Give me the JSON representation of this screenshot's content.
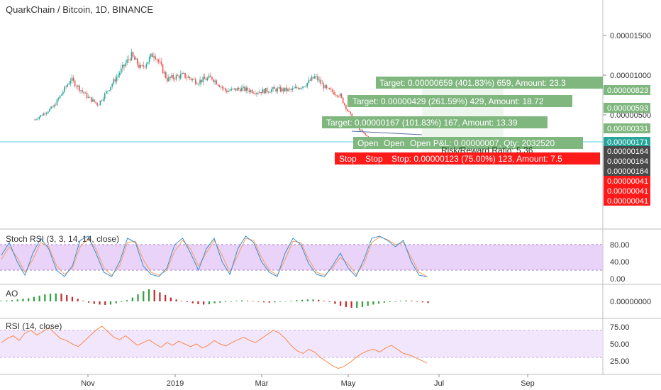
{
  "colors": {
    "up": "#26a69a",
    "down": "#ef5350",
    "target_box": "#7fb77e",
    "stop_box": "#ff1a1a",
    "stoch_k": "#3a8fd6",
    "stoch_d": "#f5a05a",
    "rsi_line": "#f5894a",
    "band": "#e3c8f6",
    "price_line": "#26c6da"
  },
  "header": {
    "symbol": "QuarkChain / Bitcoin, 1D, BINANCE"
  },
  "chart_data": [
    {
      "type": "candlestick",
      "pane": "price",
      "title": "QuarkChain / Bitcoin, 1D, BINANCE",
      "y_ticks": [
        "0.00001500",
        "0.00001000",
        "0.00000500"
      ],
      "ylim": [
        5e-07,
        1.82e-05
      ],
      "x_ticks": [
        "Nov",
        "2019",
        "Mar",
        "May",
        "Jul",
        "Sep"
      ],
      "price_path": [
        [
          "2018-09-25",
          4.4e-06
        ],
        [
          "2018-10-08",
          6e-06
        ],
        [
          "2018-10-20",
          9.5e-06
        ],
        [
          "2018-11-01",
          7.2e-06
        ],
        [
          "2018-11-08",
          6.3e-06
        ],
        [
          "2018-11-20",
          9.5e-06
        ],
        [
          "2018-12-01",
          1.25e-05
        ],
        [
          "2018-12-08",
          1.08e-05
        ],
        [
          "2018-12-17",
          1.28e-05
        ],
        [
          "2018-12-26",
          9.5e-06
        ],
        [
          "2019-01-06",
          1e-05
        ],
        [
          "2019-01-16",
          9.2e-06
        ],
        [
          "2019-01-26",
          9.7e-06
        ],
        [
          "2019-02-05",
          8e-06
        ],
        [
          "2019-02-15",
          8.3e-06
        ],
        [
          "2019-02-27",
          7.9e-06
        ],
        [
          "2019-03-10",
          8.2e-06
        ],
        [
          "2019-03-22",
          8.1e-06
        ],
        [
          "2019-04-01",
          8.8e-06
        ],
        [
          "2019-04-08",
          9.8e-06
        ],
        [
          "2019-04-16",
          8.2e-06
        ],
        [
          "2019-04-25",
          7.5e-06
        ],
        [
          "2019-05-01",
          5.4e-06
        ],
        [
          "2019-05-08",
          3.3e-06
        ],
        [
          "2019-05-15",
          2.1e-06
        ],
        [
          "2019-05-25",
          2.2e-06
        ],
        [
          "2019-06-03",
          1.8e-06
        ],
        [
          "2019-06-10",
          1.7e-06
        ]
      ],
      "price_tags": [
        {
          "label": "0.00000823",
          "value": 8.23e-06,
          "color": "#7fb77e"
        },
        {
          "label": "0.00000593",
          "value": 5.93e-06,
          "color": "#7fb77e"
        },
        {
          "label": "0.00000331",
          "value": 3.31e-06,
          "color": "#7fb77e"
        },
        {
          "label": "0.00000171",
          "value": 1.71e-06,
          "color": "#26a69a"
        },
        {
          "label": "0.00000164",
          "value": 1.64e-06,
          "color": "#4a4a4a"
        },
        {
          "label": "0.00000164",
          "value": 1.64e-06,
          "color": "#4a4a4a"
        },
        {
          "label": "0.00000164",
          "value": 1.64e-06,
          "color": "#4a4a4a"
        },
        {
          "label": "0.00000041",
          "value": 4.1e-07,
          "color": "#ff1a1a"
        },
        {
          "label": "0.00000041",
          "value": 4.1e-07,
          "color": "#ff1a1a"
        },
        {
          "label": "0.00000041",
          "value": 4.1e-07,
          "color": "#ff1a1a"
        }
      ],
      "annotations": {
        "target_1": "Target: 0.00000659 (401.83%) 659, Amount: 23.3",
        "target_2": "Target: 0.00000429 (261.59%) 429, Amount: 18.72",
        "target_3": "Target: 0.00000167 (101.83%) 167, Amount: 13.39",
        "open_1": "Open",
        "open_2": "Open",
        "open_3": "Open P&L: 0.00000007, Qty: 2032520",
        "risk_reward": "Risk/Reward Ratio: 5.36",
        "stop_1": "Stop",
        "stop_2": "Stop",
        "stop_3": "Stop: 0.00000123 (75.00%) 123, Amount: 7.5"
      }
    },
    {
      "type": "line",
      "pane": "stoch_rsi",
      "title": "Stoch RSI (3, 3, 14, 14, close)",
      "y_ticks": [
        "80.00",
        "40.00",
        "0.00"
      ],
      "ylim": [
        -5,
        100
      ],
      "band": [
        20,
        80
      ],
      "series": [
        {
          "values": [
            55,
            85,
            40,
            8,
            60,
            95,
            70,
            20,
            5,
            30,
            90,
            100,
            60,
            15,
            5,
            40,
            95,
            85,
            30,
            10,
            5,
            25,
            80,
            95,
            60,
            20,
            70,
            95,
            40,
            10,
            70,
            100,
            85,
            40,
            15,
            5,
            60,
            95,
            80,
            35,
            10,
            5,
            30,
            60,
            25,
            5,
            45,
            95,
            100,
            90,
            75,
            90,
            40,
            8,
            5
          ]
        },
        {
          "values": [
            45,
            75,
            50,
            15,
            45,
            85,
            75,
            30,
            10,
            25,
            75,
            95,
            70,
            25,
            8,
            30,
            85,
            88,
            45,
            15,
            8,
            20,
            65,
            90,
            70,
            30,
            60,
            90,
            55,
            15,
            55,
            95,
            90,
            50,
            20,
            8,
            45,
            88,
            85,
            45,
            15,
            8,
            25,
            50,
            35,
            10,
            35,
            85,
            98,
            92,
            80,
            85,
            50,
            15,
            5
          ]
        }
      ]
    },
    {
      "type": "histogram",
      "pane": "ao",
      "title": "AO",
      "y_ticks": [
        "0.00000000"
      ],
      "values": [
        0.1,
        0.15,
        0.2,
        0.3,
        0.4,
        0.5,
        0.7,
        0.9,
        1.1,
        1.2,
        1.25,
        1.2,
        1.0,
        0.7,
        0.4,
        0.1,
        -0.2,
        -0.4,
        -0.5,
        -0.55,
        -0.5,
        -0.3,
        -0.1,
        0.2,
        0.6,
        1.1,
        1.6,
        1.9,
        1.8,
        1.4,
        1.0,
        0.6,
        0.3,
        0.1,
        -0.1,
        -0.3,
        -0.45,
        -0.5,
        -0.45,
        -0.3,
        -0.2,
        -0.1,
        0.0,
        0.1,
        0.15,
        0.1,
        0.05,
        -0.05,
        -0.15,
        -0.2,
        -0.15,
        -0.05,
        0.05,
        0.1,
        0.2,
        0.25,
        0.3,
        0.3,
        0.25,
        0.1,
        -0.1,
        -0.4,
        -0.7,
        -0.9,
        -1.0,
        -1.0,
        -0.9,
        -0.7,
        -0.5,
        -0.35,
        -0.2,
        -0.1,
        0.0,
        0.1,
        0.15,
        0.1,
        -0.05,
        -0.15,
        -0.25
      ]
    },
    {
      "type": "line",
      "pane": "rsi",
      "title": "RSI (14, close)",
      "y_ticks": [
        "75.00",
        "50.00",
        "25.00"
      ],
      "ylim": [
        5,
        85
      ],
      "band": [
        30,
        70
      ],
      "series": [
        {
          "values": [
            52,
            58,
            62,
            55,
            66,
            70,
            63,
            68,
            74,
            66,
            58,
            55,
            50,
            46,
            54,
            62,
            70,
            76,
            68,
            60,
            56,
            62,
            55,
            48,
            52,
            56,
            50,
            45,
            52,
            48,
            54,
            50,
            46,
            50,
            44,
            48,
            55,
            50,
            47,
            52,
            56,
            60,
            55,
            52,
            58,
            64,
            70,
            66,
            58,
            48,
            40,
            36,
            42,
            38,
            30,
            24,
            18,
            14,
            17,
            23,
            30,
            36,
            40,
            42,
            38,
            44,
            48,
            42,
            36,
            34,
            30,
            26,
            22
          ]
        }
      ]
    }
  ]
}
